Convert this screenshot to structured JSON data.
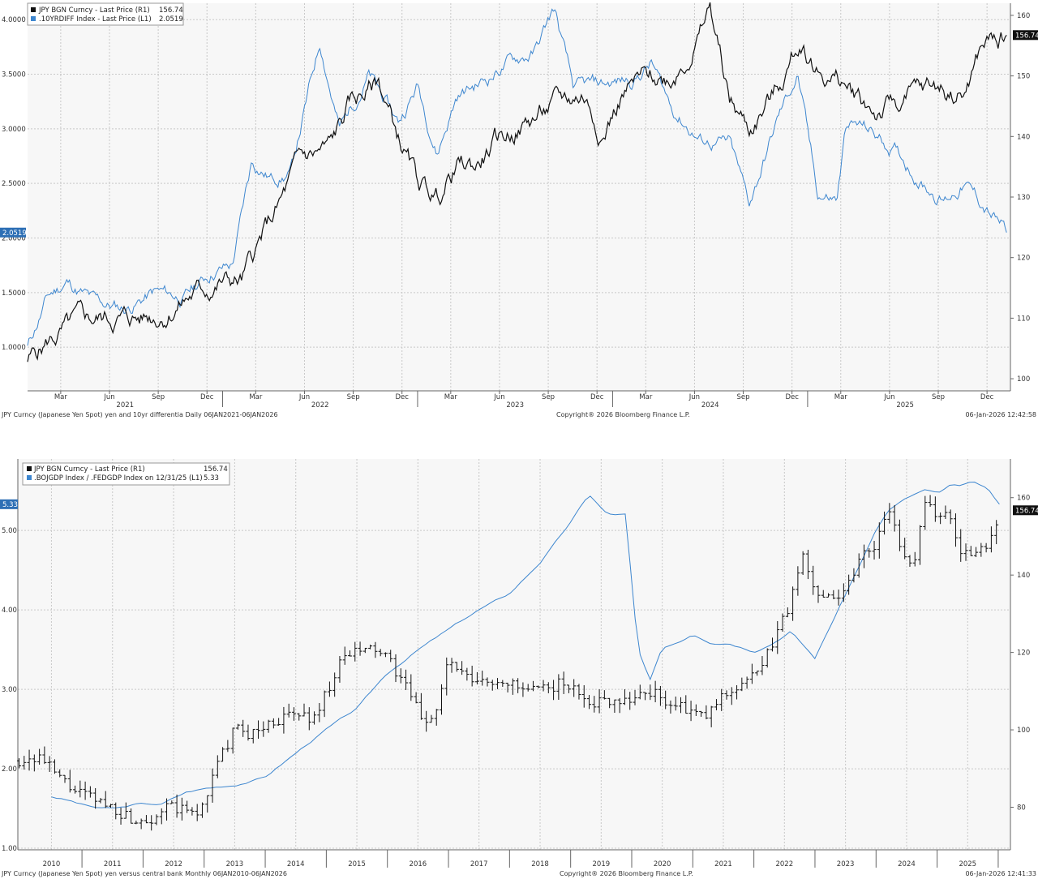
{
  "colors": {
    "yen": "#111111",
    "differential": "#3d86cf",
    "grid": "#c8c8c8",
    "background": "#f7f7f7"
  },
  "chart_data": [
    {
      "type": "line",
      "legend": {
        "yen": {
          "label": "JPY BGN Curncy - Last Price (R1)",
          "value": "156.74"
        },
        "diff": {
          "label": ".10YRDIFF Index - Last Price (L1)",
          "value": "2.0519"
        }
      },
      "left_axis": {
        "ticks": [
          "1.0000",
          "1.5000",
          "2.0000",
          "2.5000",
          "3.0000",
          "3.5000",
          "4.0000"
        ],
        "range": [
          0.6,
          4.15
        ],
        "last_label": "2.0519"
      },
      "right_axis": {
        "ticks": [
          "100",
          "110",
          "120",
          "130",
          "140",
          "150",
          "160"
        ],
        "range": [
          98,
          162
        ],
        "last_label": "156.74"
      },
      "month_labels": [
        "Mar",
        "Jun",
        "Sep",
        "Dec",
        "Mar",
        "Jun",
        "Sep",
        "Dec",
        "Mar",
        "Jun",
        "Sep",
        "Dec",
        "Mar",
        "Jun",
        "Sep",
        "Dec",
        "Mar",
        "Jun",
        "Sep",
        "Dec"
      ],
      "year_labels": [
        "2021",
        "2022",
        "2023",
        "2024",
        "2025"
      ],
      "series": [
        {
          "name": "JPY (R1)",
          "axis": "right",
          "x": [
            2021.0,
            2021.1,
            2021.25,
            2021.4,
            2021.55,
            2021.7,
            2021.85,
            2022.0,
            2022.1,
            2022.2,
            2022.3,
            2022.4,
            2022.55,
            2022.65,
            2022.8,
            2022.9,
            2023.0,
            2023.1,
            2023.2,
            2023.3,
            2023.4,
            2023.55,
            2023.7,
            2023.85,
            2023.95,
            2024.05,
            2024.15,
            2024.3,
            2024.45,
            2024.5,
            2024.6,
            2024.7,
            2024.85,
            2024.97,
            2025.05,
            2025.2,
            2025.35,
            2025.5,
            2025.65,
            2025.8,
            2025.9,
            2026.02
          ],
          "y": [
            103,
            106,
            109,
            110,
            110,
            111,
            114,
            116,
            116,
            123,
            129,
            136,
            138,
            145,
            149,
            140,
            132,
            130,
            135,
            135,
            139,
            142,
            145,
            147,
            141,
            147,
            149,
            150,
            157,
            161,
            146,
            141,
            148,
            156,
            151,
            148,
            144,
            146,
            148,
            147,
            155,
            156.74
          ]
        },
        {
          "name": ".10YRDIFF (L1)",
          "axis": "left",
          "x": [
            2021.0,
            2021.1,
            2021.2,
            2021.35,
            2021.5,
            2021.65,
            2021.8,
            2021.95,
            2022.05,
            2022.15,
            2022.25,
            2022.35,
            2022.5,
            2022.6,
            2022.75,
            2022.9,
            2023.0,
            2023.1,
            2023.2,
            2023.35,
            2023.45,
            2023.6,
            2023.7,
            2023.8,
            2023.95,
            2024.1,
            2024.2,
            2024.3,
            2024.45,
            2024.6,
            2024.7,
            2024.85,
            2024.95,
            2025.05,
            2025.15,
            2025.2,
            2025.3,
            2025.45,
            2025.6,
            2025.7,
            2025.8,
            2025.9,
            2026.02
          ],
          "y": [
            1.0,
            1.45,
            1.6,
            1.4,
            1.35,
            1.5,
            1.45,
            1.7,
            1.75,
            2.7,
            2.55,
            2.6,
            3.8,
            3.0,
            3.5,
            3.05,
            3.4,
            2.8,
            3.3,
            3.45,
            3.6,
            3.7,
            4.1,
            3.35,
            3.4,
            3.45,
            3.6,
            3.2,
            2.9,
            2.85,
            2.3,
            3.1,
            3.5,
            2.4,
            2.35,
            3.05,
            3.0,
            2.8,
            2.5,
            2.35,
            2.5,
            2.3,
            2.05
          ]
        }
      ],
      "footer": {
        "left": "JPY Curncy (Japanese Yen Spot) yen and 10yr differentia Daily 06JAN2021-06JAN2026",
        "center": "Copyright® 2026 Bloomberg Finance L.P.",
        "right": "06-Jan-2026 12:42:58"
      }
    },
    {
      "type": "line",
      "legend": {
        "yen": {
          "label": "JPY BGN Curncy - Last Price (R1)",
          "value": "156.74"
        },
        "ratio": {
          "label": ".BOJGDP Index / .FEDGDP Index on 12/31/25 (L1)",
          "value": "5.33"
        }
      },
      "left_axis": {
        "ticks": [
          "1.00",
          "2.00",
          "3.00",
          "4.00",
          "5.00"
        ],
        "range": [
          0.98,
          5.9
        ],
        "last_label": "5.33"
      },
      "right_axis": {
        "ticks": [
          "80",
          "100",
          "120",
          "140",
          "160"
        ],
        "range": [
          69,
          170
        ],
        "last_label": "156.74"
      },
      "year_labels": [
        "2010",
        "2011",
        "2012",
        "2013",
        "2014",
        "2015",
        "2016",
        "2017",
        "2018",
        "2019",
        "2020",
        "2021",
        "2022",
        "2023",
        "2024",
        "2025"
      ],
      "series": [
        {
          "name": "JPY (R1)",
          "axis": "right",
          "x": [
            2009.95,
            2010.3,
            2010.6,
            2010.9,
            2011.2,
            2011.5,
            2011.8,
            2012.1,
            2012.4,
            2012.7,
            2012.9,
            2013.1,
            2013.3,
            2013.5,
            2013.8,
            2014.1,
            2014.5,
            2014.8,
            2015.0,
            2015.3,
            2015.5,
            2015.8,
            2016.0,
            2016.2,
            2016.4,
            2016.6,
            2016.8,
            2017.0,
            2017.3,
            2017.6,
            2017.9,
            2018.2,
            2018.5,
            2018.8,
            2019.1,
            2019.4,
            2019.7,
            2020.0,
            2020.3,
            2020.6,
            2020.9,
            2021.2,
            2021.5,
            2021.8,
            2022.1,
            2022.4,
            2022.6,
            2022.8,
            2023.0,
            2023.2,
            2023.4,
            2023.6,
            2023.8,
            2024.0,
            2024.2,
            2024.4,
            2024.6,
            2024.8,
            2025.0,
            2025.2,
            2025.4,
            2025.6,
            2025.85,
            2026.02
          ],
          "y": [
            92,
            93,
            88,
            84,
            82,
            80,
            77,
            77,
            80,
            79,
            78,
            86,
            94,
            100,
            99,
            102,
            104,
            103,
            110,
            119,
            120,
            121,
            118,
            114,
            108,
            102,
            105,
            118,
            113,
            112,
            113,
            110,
            110,
            112,
            110,
            107,
            108,
            108,
            110,
            107,
            105,
            103,
            109,
            112,
            115,
            126,
            133,
            145,
            135,
            136,
            134,
            140,
            146,
            148,
            159,
            145,
            142,
            160,
            155,
            155,
            146,
            145,
            148,
            156.74
          ]
        },
        {
          "name": ".BOJGDP/.FEDGDP (L1)",
          "axis": "left",
          "x": [
            2010.5,
            2010.8,
            2011.0,
            2011.3,
            2011.6,
            2011.9,
            2012.3,
            2012.7,
            2013.0,
            2013.5,
            2014.0,
            2014.5,
            2015.0,
            2015.5,
            2016.0,
            2016.5,
            2017.0,
            2017.5,
            2018.0,
            2018.5,
            2019.0,
            2019.3,
            2019.6,
            2019.9,
            2020.1,
            2020.3,
            2020.5,
            2020.8,
            2021.0,
            2021.3,
            2021.6,
            2022.0,
            2022.3,
            2022.6,
            2023.0,
            2023.5,
            2024.0,
            2024.2,
            2024.5,
            2024.8,
            2025.0,
            2025.2,
            2025.4,
            2025.6,
            2025.85,
            2026.02
          ],
          "y": [
            1.65,
            1.6,
            1.55,
            1.5,
            1.5,
            1.55,
            1.55,
            1.7,
            1.75,
            1.8,
            1.9,
            2.2,
            2.5,
            2.75,
            3.2,
            3.5,
            3.75,
            4.0,
            4.2,
            4.6,
            5.1,
            5.45,
            5.2,
            5.2,
            3.5,
            3.1,
            3.5,
            3.6,
            3.7,
            3.6,
            3.6,
            3.5,
            3.6,
            3.75,
            3.4,
            4.2,
            5.0,
            5.25,
            5.4,
            5.5,
            5.45,
            5.55,
            5.55,
            5.6,
            5.5,
            5.33
          ]
        }
      ],
      "footer": {
        "left": "JPY Curncy (Japanese Yen Spot) yen versus central bank Monthly 06JAN2010-06JAN2026",
        "center": "Copyright® 2026 Bloomberg Finance L.P.",
        "right": "06-Jan-2026 12:41:33"
      }
    }
  ]
}
